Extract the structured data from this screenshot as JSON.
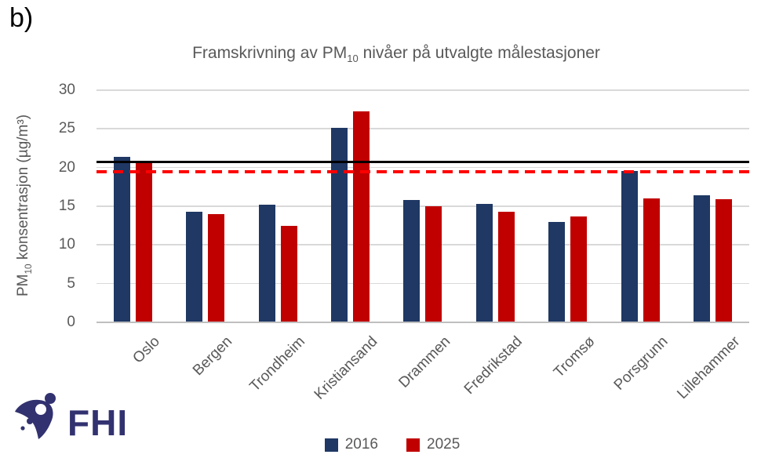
{
  "figure_label": "b)",
  "title": {
    "prefix": "Framskrivning av PM",
    "sub": "10",
    "suffix": " nivåer på utvalgte målestasjoner"
  },
  "y_axis": {
    "label_prefix": "PM",
    "label_sub": "10",
    "label_suffix": " konsentrasjon (µg/m³)"
  },
  "logo": {
    "text": "FHI"
  },
  "colors": {
    "series_2016": "#1f3864",
    "series_2025": "#c00000",
    "reference_solid": "#000000",
    "reference_dashed": "#ff0000",
    "gridline": "#d9d9d9",
    "axis_line": "#bfbfbf",
    "text_gray": "#595959",
    "logo_navy": "#323270"
  },
  "chart_data": {
    "type": "bar",
    "title": "Framskrivning av PM10 nivåer på utvalgte målestasjoner",
    "ylabel": "PM10 konsentrasjon (µg/m³)",
    "xlabel": "",
    "ylim": [
      0,
      30
    ],
    "yticks": [
      0,
      5,
      10,
      15,
      20,
      25,
      30
    ],
    "grid": true,
    "legend_position": "bottom",
    "categories": [
      "Oslo",
      "Bergen",
      "Trondheim",
      "Kristiansand",
      "Drammen",
      "Fredrikstad",
      "Tromsø",
      "Porsgrunn",
      "Lillehammer"
    ],
    "series": [
      {
        "name": "2016",
        "color": "#1f3864",
        "values": [
          21.4,
          14.3,
          15.2,
          25.1,
          15.8,
          15.3,
          13.0,
          19.6,
          16.4
        ]
      },
      {
        "name": "2025",
        "color": "#c00000",
        "values": [
          20.8,
          14.0,
          12.5,
          27.3,
          15.0,
          14.3,
          13.7,
          16.0,
          15.9
        ]
      }
    ],
    "reference_lines": [
      {
        "value": 20.7,
        "style": "solid",
        "color": "#000000"
      },
      {
        "value": 19.5,
        "style": "dashed",
        "color": "#ff0000"
      }
    ]
  }
}
